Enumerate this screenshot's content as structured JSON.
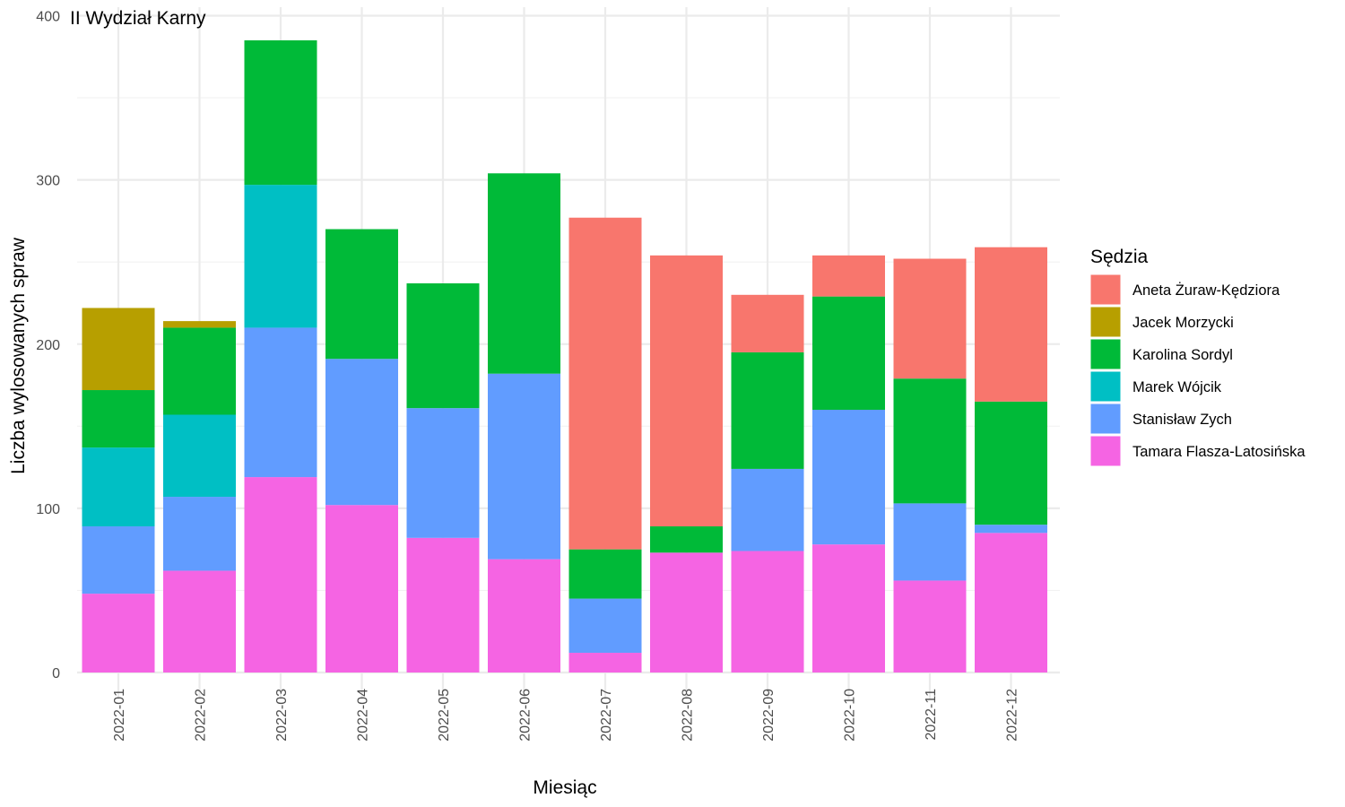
{
  "chart_data": {
    "type": "bar",
    "stacked": true,
    "title": "II Wydział Karny",
    "xlabel": "Miesiąc",
    "ylabel": "Liczba wylosowanych spraw",
    "ylim": [
      0,
      400
    ],
    "yticks": [
      0,
      100,
      200,
      300,
      400
    ],
    "ytick_labels": [
      "0",
      "100",
      "200",
      "300",
      "400"
    ],
    "grid": true,
    "legend_position": "right",
    "legend_title": "Sędzia",
    "categories": [
      "2022-01",
      "2022-02",
      "2022-03",
      "2022-04",
      "2022-05",
      "2022-06",
      "2022-07",
      "2022-08",
      "2022-09",
      "2022-10",
      "2022-11",
      "2022-12"
    ],
    "series": [
      {
        "name": "Aneta Żuraw-Kędziora",
        "color": "#F8766D",
        "values": [
          0,
          0,
          0,
          0,
          0,
          0,
          202,
          165,
          35,
          25,
          73,
          94
        ]
      },
      {
        "name": "Jacek Morzycki",
        "color": "#B79F00",
        "values": [
          50,
          4,
          0,
          0,
          0,
          0,
          0,
          0,
          0,
          0,
          0,
          0
        ]
      },
      {
        "name": "Karolina Sordyl",
        "color": "#00BA38",
        "values": [
          35,
          53,
          88,
          79,
          76,
          122,
          30,
          16,
          71,
          69,
          76,
          75
        ]
      },
      {
        "name": "Marek Wójcik",
        "color": "#00BFC4",
        "values": [
          48,
          50,
          87,
          0,
          0,
          0,
          0,
          0,
          0,
          0,
          0,
          0
        ]
      },
      {
        "name": "Stanisław Zych",
        "color": "#619CFF",
        "values": [
          41,
          45,
          91,
          89,
          79,
          113,
          33,
          0,
          50,
          82,
          47,
          5
        ]
      },
      {
        "name": "Tamara Flasza-Latosińska",
        "color": "#F564E3",
        "values": [
          48,
          62,
          119,
          102,
          82,
          69,
          12,
          73,
          74,
          78,
          56,
          85
        ]
      }
    ]
  }
}
